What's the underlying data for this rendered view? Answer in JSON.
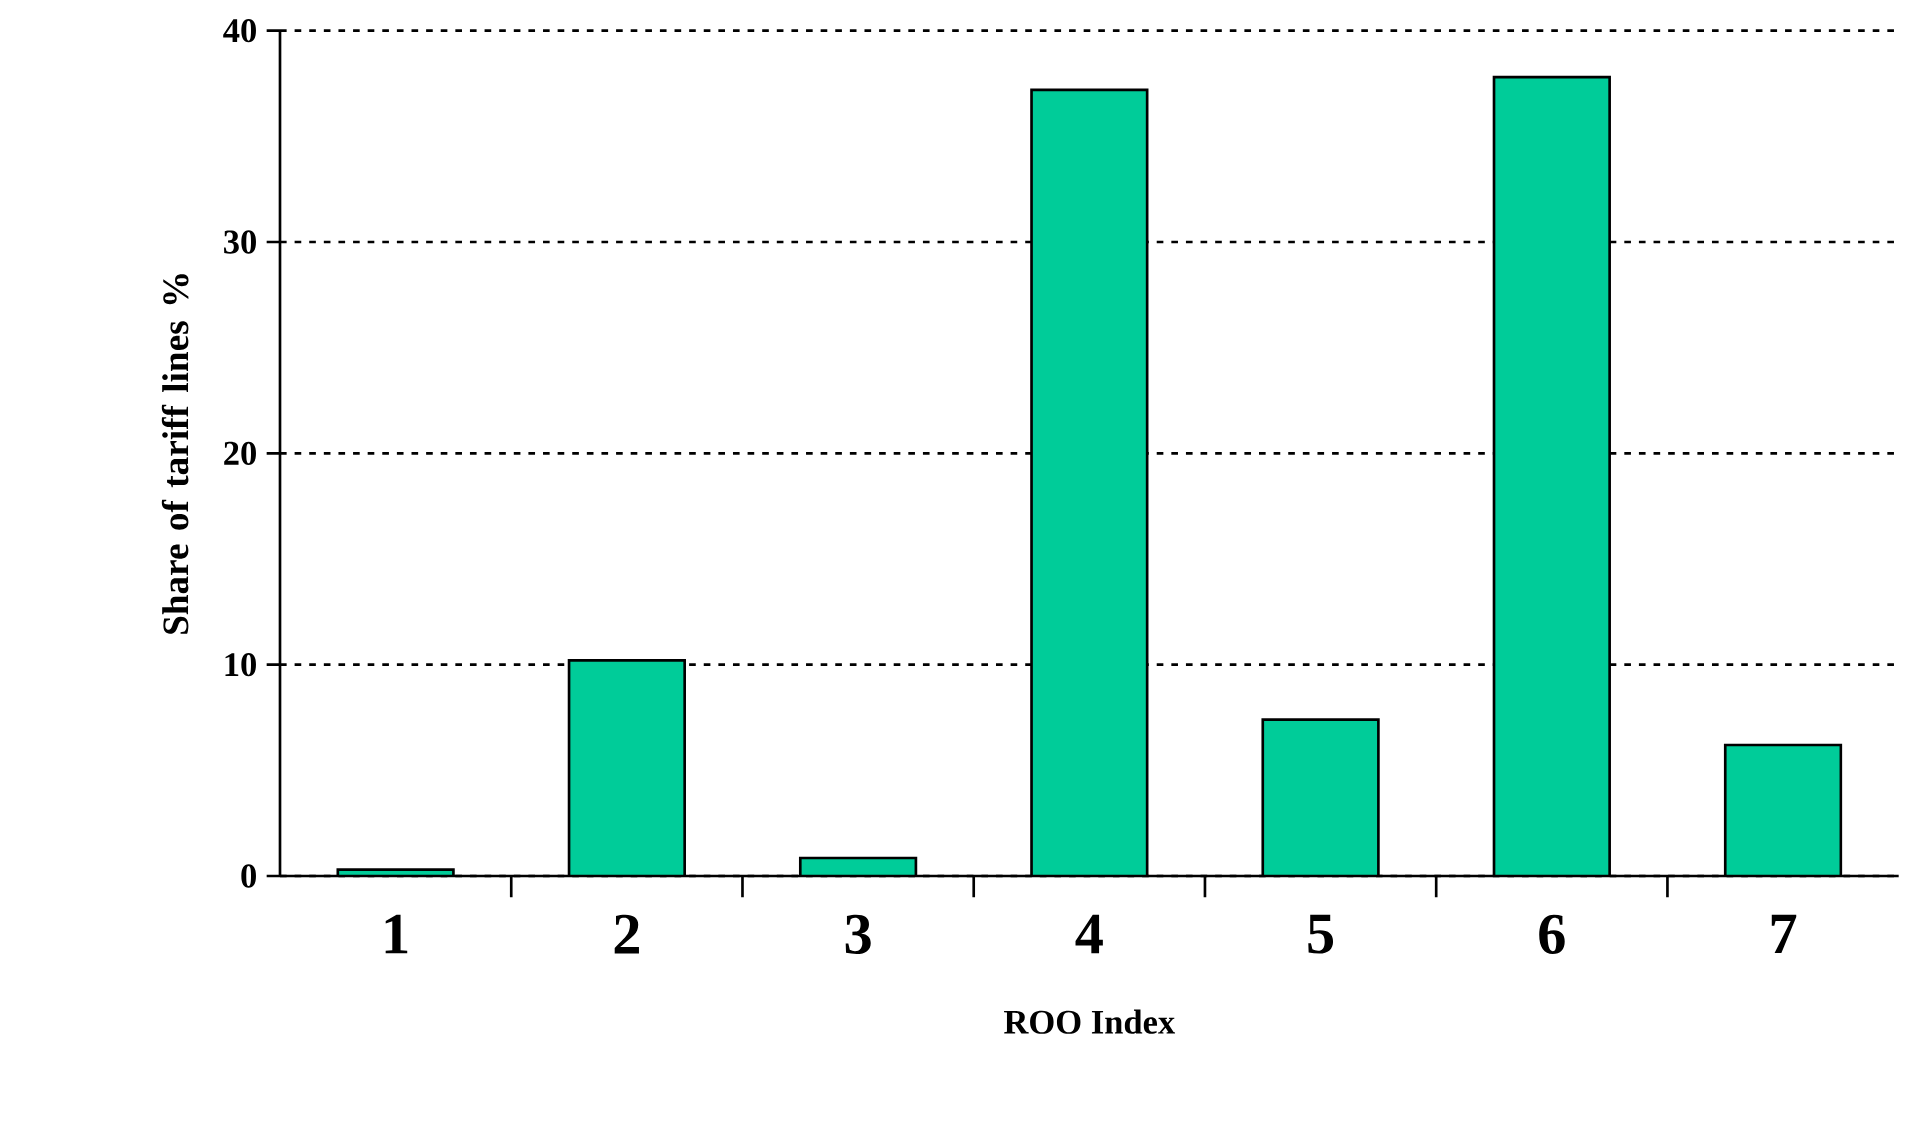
{
  "chart_data": {
    "type": "bar",
    "xlabel": "ROO Index",
    "ylabel": "Share of tariff lines %",
    "categories": [
      "1",
      "2",
      "3",
      "4",
      "5",
      "6",
      "7"
    ],
    "values": [
      0.3,
      10.2,
      0.85,
      37.2,
      7.4,
      37.8,
      6.2
    ],
    "color": "#00cc99",
    "ylim": [
      0,
      40
    ],
    "yticks": [
      0,
      10,
      20,
      30,
      40
    ],
    "grid": "y"
  }
}
